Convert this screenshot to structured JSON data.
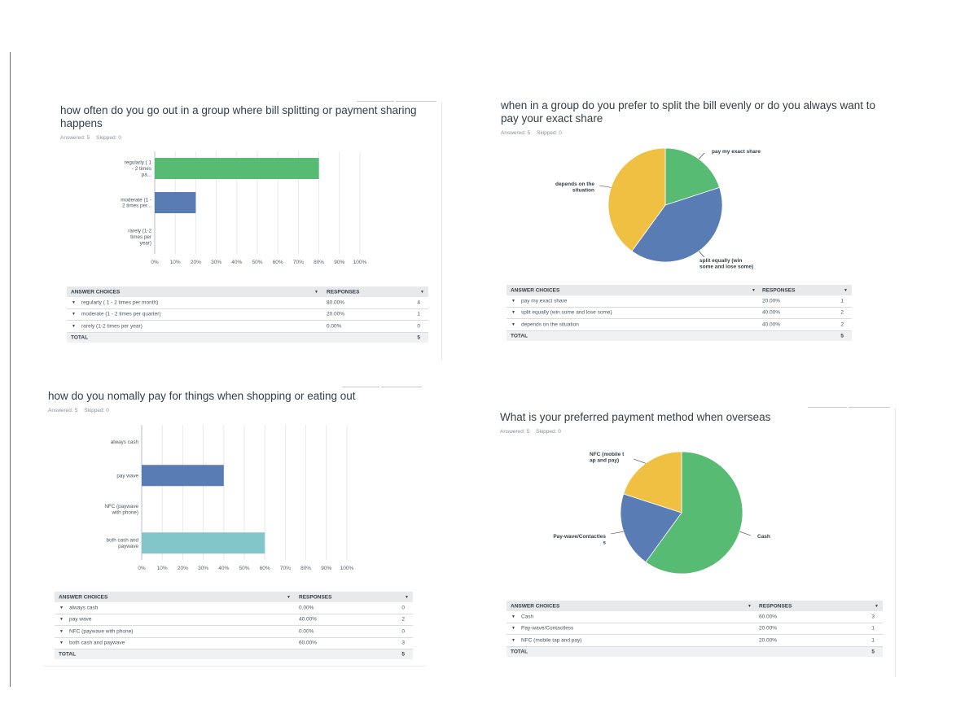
{
  "colors": {
    "green": "#57bb74",
    "blue": "#5a7cb4",
    "teal": "#82c6c9",
    "yellow": "#f0c042",
    "grid": "#e6e8ea"
  },
  "table_labels": {
    "answer_choices": "ANSWER CHOICES",
    "responses": "RESPONSES",
    "total": "TOTAL"
  },
  "x_ticks": [
    "0%",
    "10%",
    "20%",
    "30%",
    "40%",
    "50%",
    "60%",
    "70%",
    "80%",
    "90%",
    "100%"
  ],
  "q1": {
    "title": "how often do you go out in a group where bill splitting or payment sharing happens",
    "answered": "Answered: 5",
    "skipped": "Skipped: 0",
    "rows": [
      {
        "choice": "regularly ( 1 - 2 times per month)",
        "pct": "80.00%",
        "count": "4"
      },
      {
        "choice": "moderate (1 - 2 times per quarter)",
        "pct": "20.00%",
        "count": "1"
      },
      {
        "choice": "rarely (1-2 times per year)",
        "pct": "0.00%",
        "count": "0"
      }
    ],
    "total": "5"
  },
  "q2": {
    "title": "when in a group do you prefer to split the bill evenly or do you always want to pay your exact share",
    "answered": "Answered: 5",
    "skipped": "Skipped: 0",
    "rows": [
      {
        "choice": "pay my exact share",
        "pct": "20.00%",
        "count": "1"
      },
      {
        "choice": "split equally (win some and lose some)",
        "pct": "40.00%",
        "count": "2"
      },
      {
        "choice": "depends on the situation",
        "pct": "40.00%",
        "count": "2"
      }
    ],
    "total": "5"
  },
  "q3": {
    "title": "how do you nomally pay for things when shopping or eating out",
    "answered": "Answered: 5",
    "skipped": "Skipped: 0",
    "rows": [
      {
        "choice": "always cash",
        "pct": "0.00%",
        "count": "0"
      },
      {
        "choice": "pay wave",
        "pct": "40.00%",
        "count": "2"
      },
      {
        "choice": "NFC (paywave with phone)",
        "pct": "0.00%",
        "count": "0"
      },
      {
        "choice": "both cash and paywave",
        "pct": "60.00%",
        "count": "3"
      }
    ],
    "total": "5"
  },
  "q4": {
    "title": "What is your preferred payment method when overseas",
    "answered": "Answered: 5",
    "skipped": "Skipped: 0",
    "rows": [
      {
        "choice": "Cash",
        "pct": "60.00%",
        "count": "3"
      },
      {
        "choice": "Pay-wave/Contactless",
        "pct": "20.00%",
        "count": "1"
      },
      {
        "choice": "NFC (mobile tap and pay)",
        "pct": "20.00%",
        "count": "1"
      }
    ],
    "total": "5"
  },
  "chart_data": [
    {
      "type": "bar",
      "orientation": "horizontal",
      "categories": [
        "regularly ( 1 - 2 times pa...",
        "moderate (1 - 2 times per...",
        "rarely (1-2 times per year)"
      ],
      "values": [
        80,
        20,
        0
      ],
      "colors": [
        "#57bb74",
        "#5a7cb4",
        "#82c6c9"
      ],
      "xlim": [
        0,
        100
      ],
      "grid": true
    },
    {
      "type": "pie",
      "labels": [
        "pay my exact share",
        "split equally (win some and lose some)",
        "depends on the situation"
      ],
      "values": [
        20,
        40,
        40
      ],
      "colors": [
        "#57bb74",
        "#5a7cb4",
        "#f0c042"
      ]
    },
    {
      "type": "bar",
      "orientation": "horizontal",
      "categories": [
        "always cash",
        "pay wave",
        "NFC (paywave with phone)",
        "both cash and paywave"
      ],
      "values": [
        0,
        40,
        0,
        60
      ],
      "colors": [
        "#57bb74",
        "#5a7cb4",
        "#f0c042",
        "#82c6c9"
      ],
      "xlim": [
        0,
        100
      ],
      "grid": true
    },
    {
      "type": "pie",
      "labels": [
        "Cash",
        "Pay-wave/Contactless",
        "NFC (mobile tap and pay)"
      ],
      "values": [
        60,
        20,
        20
      ],
      "colors": [
        "#57bb74",
        "#5a7cb4",
        "#f0c042"
      ]
    }
  ]
}
